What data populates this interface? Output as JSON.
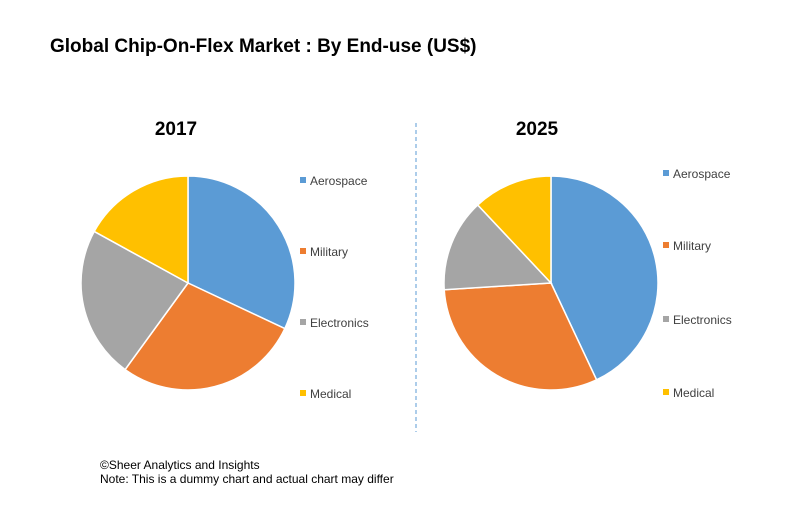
{
  "title": "Global Chip-On-Flex Market : By End-use (US$)",
  "colors": {
    "Aerospace": "#5b9bd5",
    "Military": "#ed7d31",
    "Electronics": "#a5a5a5",
    "Medical": "#ffc000"
  },
  "chart_data": [
    {
      "type": "pie",
      "title": "2017",
      "legend_position": "right",
      "categories": [
        "Aerospace",
        "Military",
        "Electronics",
        "Medical"
      ],
      "values": [
        32,
        28,
        23,
        17
      ]
    },
    {
      "type": "pie",
      "title": "2025",
      "legend_position": "right",
      "categories": [
        "Aerospace",
        "Military",
        "Electronics",
        "Medical"
      ],
      "values": [
        43,
        31,
        14,
        12
      ]
    }
  ],
  "footer": {
    "copyright": "©Sheer Analytics and Insights",
    "note": "Note: This is a dummy chart and actual chart may differ"
  }
}
